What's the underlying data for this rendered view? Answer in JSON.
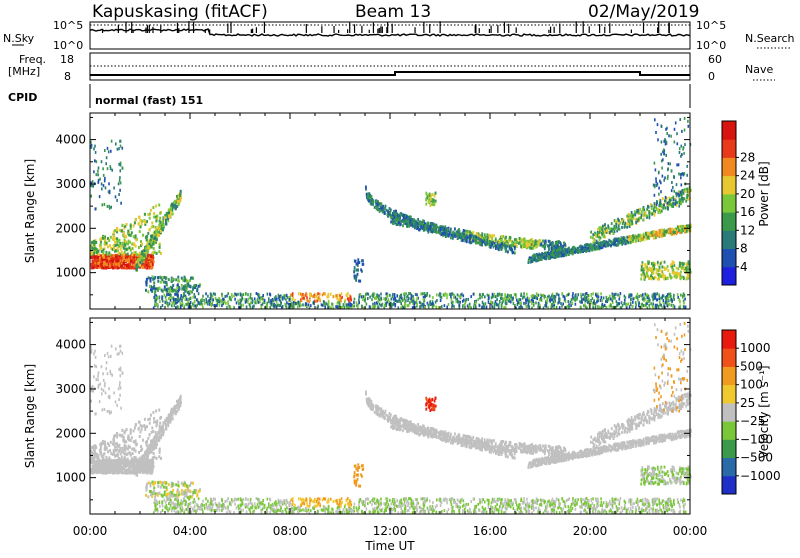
{
  "header": {
    "station": "Kapuskasing (fitACF)",
    "beam": "Beam 13",
    "date": "02/May/2019"
  },
  "top_panels": {
    "nsky_label": "N.Sky",
    "nsky_ticks": [
      "10^5",
      "10^0"
    ],
    "nsearch_label": "N.Search",
    "nsearch_ticks": [
      "10^5",
      "10^0"
    ],
    "freq_label_1": "Freq.",
    "freq_label_2": "[MHz]",
    "freq_ticks": [
      "18",
      "8"
    ],
    "nave_label": "Nave",
    "nave_ticks": [
      "60",
      "0"
    ],
    "cpid_label": "CPID",
    "cpid_value": "normal (fast) 151"
  },
  "chart_data": [
    {
      "type": "heatmap",
      "panel": "power",
      "ylabel": "Slant Range [km]",
      "yticks": [
        "1000",
        "2000",
        "3000",
        "4000"
      ],
      "ylim": [
        180,
        4600
      ],
      "colorbar": {
        "label": "Power [dB]",
        "ticks": [
          "4",
          "8",
          "12",
          "16",
          "20",
          "24",
          "28"
        ],
        "colors": [
          "#1f1fe0",
          "#1f4fb0",
          "#2a7a7a",
          "#3a9a4a",
          "#7ac83a",
          "#e8c830",
          "#f08a20",
          "#e83a1a",
          "#d8140f"
        ]
      }
    },
    {
      "type": "heatmap",
      "panel": "velocity",
      "ylabel": "Slant Range [km]",
      "yticks": [
        "1000",
        "2000",
        "3000",
        "4000"
      ],
      "ylim": [
        180,
        4600
      ],
      "colorbar": {
        "label": "Velocity [m s⁻¹]",
        "ticks": [
          "1000",
          "500",
          "100",
          "25",
          "−25",
          "−100",
          "−500",
          "−1000"
        ],
        "colors": [
          "#1f2fc8",
          "#2b6aa8",
          "#3a9a4a",
          "#7ac83a",
          "#c0c0c0",
          "#f0c830",
          "#f09a20",
          "#f0501a",
          "#e81a0f"
        ]
      }
    }
  ],
  "x_axis": {
    "ticks": [
      "00:00",
      "04:00",
      "08:00",
      "12:00",
      "16:00",
      "20:00",
      "00:00"
    ],
    "xlabel": "Time UT"
  }
}
